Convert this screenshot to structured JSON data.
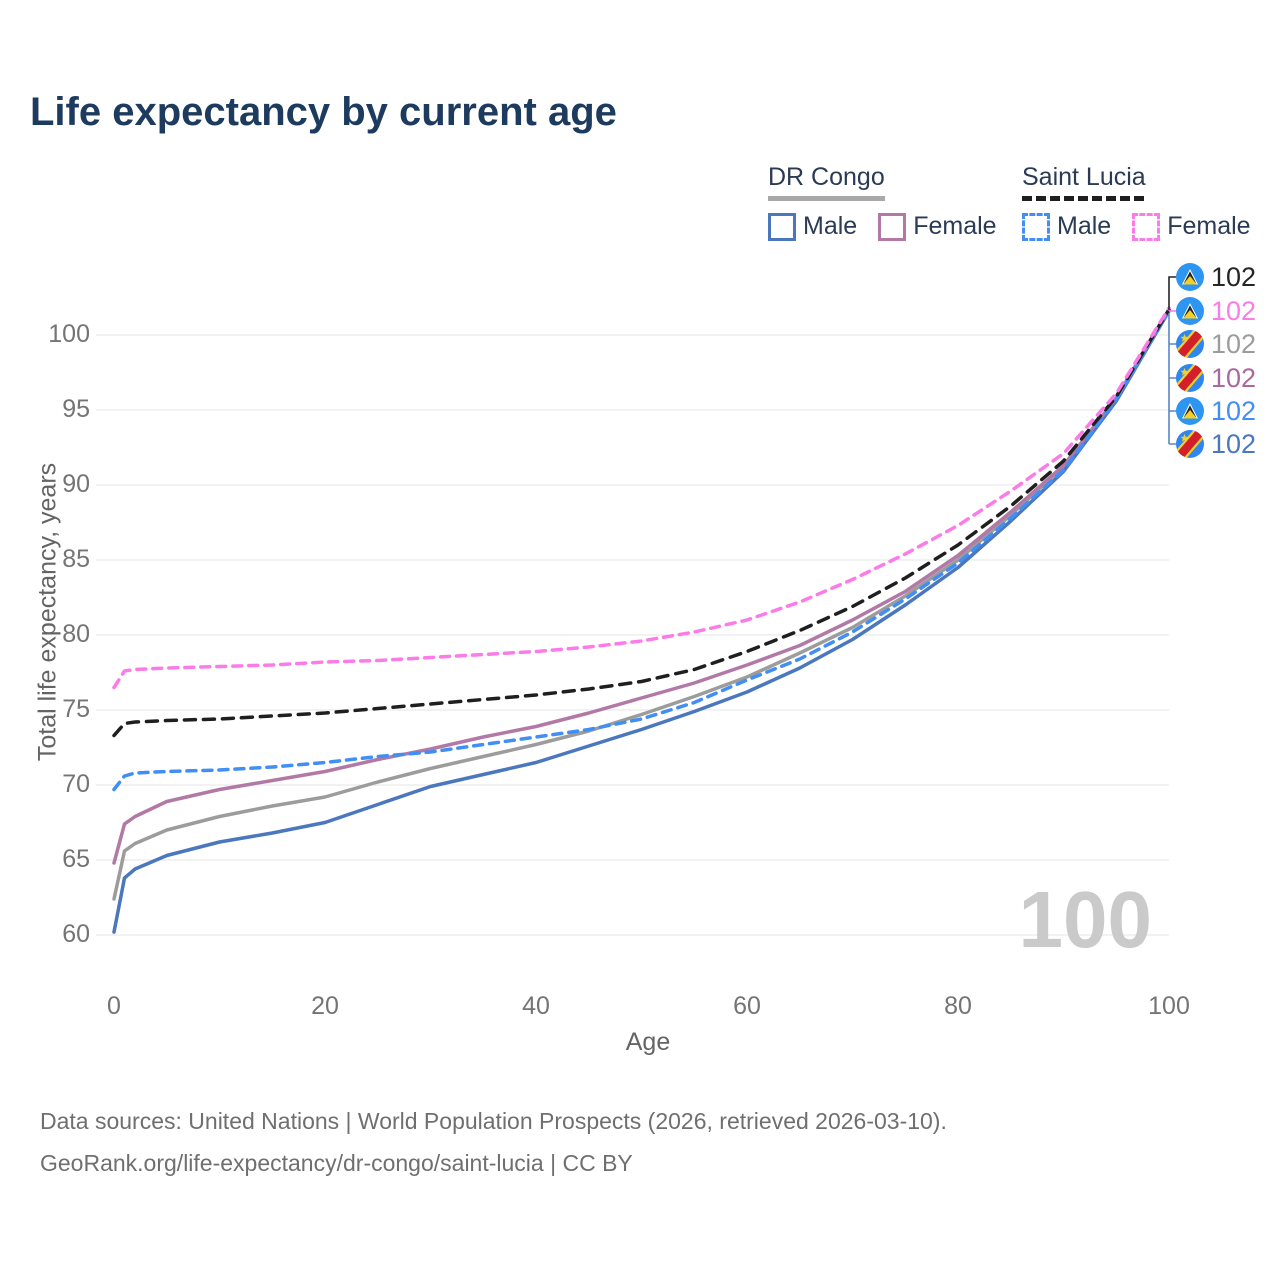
{
  "title": "Life expectancy by current age",
  "legend": {
    "groups": [
      {
        "label": "DR Congo",
        "underline_style": "solid",
        "underline_color": "#a8a8a8",
        "items": [
          {
            "label": "Male",
            "color": "#4a77bd",
            "dashed": false
          },
          {
            "label": "Female",
            "color": "#b279a7",
            "dashed": false
          }
        ]
      },
      {
        "label": "Saint Lucia",
        "underline_style": "dashed",
        "underline_color": "#1f1f1f",
        "items": [
          {
            "label": "Male",
            "color": "#418ef4",
            "dashed": true
          },
          {
            "label": "Female",
            "color": "#fb7ce8",
            "dashed": true
          }
        ]
      }
    ]
  },
  "chart_data": {
    "type": "line",
    "title": "Life expectancy by current age",
    "xlabel": "Age",
    "ylabel": "Total life expectancy, years",
    "xlim": [
      0,
      100
    ],
    "ylim": [
      60,
      102
    ],
    "xticks": [
      0,
      20,
      40,
      60,
      80,
      100
    ],
    "yticks": [
      60,
      65,
      70,
      75,
      80,
      85,
      90,
      95,
      100
    ],
    "grid": "horizontal",
    "legend_position": "top-right",
    "x": [
      0,
      1,
      2,
      5,
      10,
      15,
      20,
      25,
      30,
      35,
      40,
      45,
      50,
      55,
      60,
      65,
      70,
      75,
      80,
      85,
      90,
      95,
      100
    ],
    "series": [
      {
        "name": "DR Congo Both sexes",
        "country": "DR Congo",
        "sex": "both",
        "color": "#9c9c9c",
        "dashed": false,
        "values": [
          62.4,
          65.6,
          66.1,
          67.0,
          67.9,
          68.6,
          69.2,
          70.2,
          71.1,
          71.9,
          72.7,
          73.6,
          74.7,
          75.9,
          77.2,
          78.8,
          80.5,
          82.6,
          85.0,
          88.0,
          91.2,
          95.7,
          101.6
        ]
      },
      {
        "name": "DR Congo Male",
        "country": "DR Congo",
        "sex": "male",
        "color": "#4a77bd",
        "dashed": false,
        "values": [
          60.2,
          63.8,
          64.4,
          65.3,
          66.2,
          66.8,
          67.5,
          68.7,
          69.9,
          70.7,
          71.5,
          72.6,
          73.7,
          74.9,
          76.2,
          77.8,
          79.7,
          82.0,
          84.5,
          87.6,
          90.9,
          95.6,
          101.6
        ]
      },
      {
        "name": "DR Congo Female",
        "country": "DR Congo",
        "sex": "female",
        "color": "#b279a7",
        "dashed": false,
        "values": [
          64.8,
          67.4,
          67.9,
          68.9,
          69.7,
          70.3,
          70.9,
          71.7,
          72.4,
          73.2,
          73.9,
          74.8,
          75.8,
          76.8,
          78.0,
          79.3,
          81.0,
          82.9,
          85.3,
          88.2,
          91.3,
          95.8,
          101.7
        ]
      },
      {
        "name": "Saint Lucia Male",
        "country": "Saint Lucia",
        "sex": "male",
        "color": "#418ef4",
        "dashed": true,
        "values": [
          69.7,
          70.6,
          70.8,
          70.9,
          71.0,
          71.2,
          71.5,
          71.9,
          72.2,
          72.7,
          73.2,
          73.7,
          74.4,
          75.5,
          77.0,
          78.4,
          80.2,
          82.4,
          84.8,
          87.8,
          91.0,
          95.7,
          101.6
        ]
      },
      {
        "name": "Saint Lucia Both sexes",
        "country": "Saint Lucia",
        "sex": "both",
        "color": "#1f1f1f",
        "dashed": true,
        "values": [
          73.3,
          74.1,
          74.2,
          74.3,
          74.4,
          74.6,
          74.8,
          75.1,
          75.4,
          75.7,
          76.0,
          76.4,
          76.9,
          77.7,
          78.9,
          80.3,
          81.9,
          83.8,
          86.0,
          88.6,
          91.6,
          95.9,
          101.7
        ]
      },
      {
        "name": "Saint Lucia Female",
        "country": "Saint Lucia",
        "sex": "female",
        "color": "#fb7ce8",
        "dashed": true,
        "values": [
          76.5,
          77.6,
          77.7,
          77.8,
          77.9,
          78.0,
          78.2,
          78.3,
          78.5,
          78.7,
          78.9,
          79.2,
          79.6,
          80.2,
          81.0,
          82.2,
          83.7,
          85.4,
          87.3,
          89.6,
          92.1,
          96.1,
          101.8
        ]
      }
    ]
  },
  "endpoint_labels": [
    {
      "flag": "saint-lucia-flag-icon",
      "value": "102",
      "color": "#252525"
    },
    {
      "flag": "saint-lucia-flag-icon",
      "value": "102",
      "color": "#fb7ce8"
    },
    {
      "flag": "dr-congo-flag-icon",
      "value": "102",
      "color": "#9c9c9c"
    },
    {
      "flag": "dr-congo-flag-icon",
      "value": "102",
      "color": "#a9689e"
    },
    {
      "flag": "saint-lucia-flag-icon",
      "value": "102",
      "color": "#418ef4"
    },
    {
      "flag": "dr-congo-flag-icon",
      "value": "102",
      "color": "#4a77bd"
    }
  ],
  "watermark": "100",
  "footer": {
    "line1": "Data sources: United Nations | World Population Prospects (2026, retrieved 2026-03-10).",
    "line2": "GeoRank.org/life-expectancy/dr-congo/saint-lucia | CC BY"
  }
}
